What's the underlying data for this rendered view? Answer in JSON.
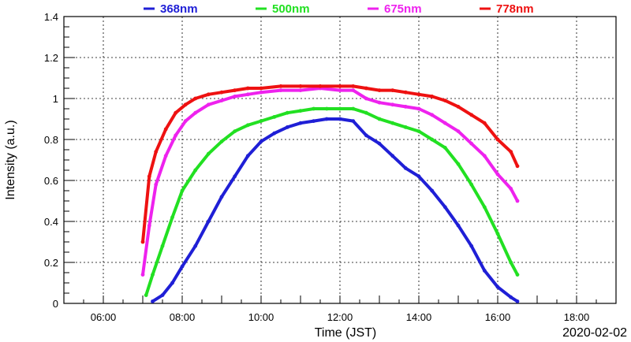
{
  "chart_data": {
    "type": "scatter",
    "title": "",
    "xlabel": "Time (JST)",
    "ylabel": "Intensity (a.u.)",
    "date_label": "2020-02-02",
    "xlim": [
      "05:00",
      "19:00"
    ],
    "ylim": [
      0,
      1.4
    ],
    "x_ticks": [
      "06:00",
      "08:00",
      "10:00",
      "12:00",
      "14:00",
      "16:00",
      "18:00"
    ],
    "y_ticks": [
      "0",
      "0.2",
      "0.4",
      "0.6",
      "0.8",
      "1",
      "1.2",
      "1.4"
    ],
    "grid": true,
    "legend_position": "top",
    "series": [
      {
        "name": "368nm",
        "color": "#1f1fd6",
        "points": [
          [
            "07:15",
            0.01
          ],
          [
            "07:30",
            0.04
          ],
          [
            "07:45",
            0.1
          ],
          [
            "08:00",
            0.18
          ],
          [
            "08:20",
            0.28
          ],
          [
            "08:40",
            0.4
          ],
          [
            "09:00",
            0.52
          ],
          [
            "09:20",
            0.62
          ],
          [
            "09:40",
            0.72
          ],
          [
            "10:00",
            0.79
          ],
          [
            "10:20",
            0.83
          ],
          [
            "10:40",
            0.86
          ],
          [
            "11:00",
            0.88
          ],
          [
            "11:20",
            0.89
          ],
          [
            "11:40",
            0.9
          ],
          [
            "12:00",
            0.9
          ],
          [
            "12:20",
            0.89
          ],
          [
            "12:40",
            0.82
          ],
          [
            "13:00",
            0.78
          ],
          [
            "13:20",
            0.72
          ],
          [
            "13:40",
            0.66
          ],
          [
            "14:00",
            0.62
          ],
          [
            "14:20",
            0.55
          ],
          [
            "14:40",
            0.47
          ],
          [
            "15:00",
            0.38
          ],
          [
            "15:20",
            0.28
          ],
          [
            "15:40",
            0.16
          ],
          [
            "16:00",
            0.08
          ],
          [
            "16:20",
            0.03
          ],
          [
            "16:30",
            0.01
          ]
        ]
      },
      {
        "name": "500nm",
        "color": "#22e022",
        "points": [
          [
            "07:05",
            0.04
          ],
          [
            "07:15",
            0.14
          ],
          [
            "07:30",
            0.28
          ],
          [
            "07:45",
            0.42
          ],
          [
            "08:00",
            0.55
          ],
          [
            "08:20",
            0.65
          ],
          [
            "08:40",
            0.73
          ],
          [
            "09:00",
            0.79
          ],
          [
            "09:20",
            0.84
          ],
          [
            "09:40",
            0.87
          ],
          [
            "10:00",
            0.89
          ],
          [
            "10:20",
            0.91
          ],
          [
            "10:40",
            0.93
          ],
          [
            "11:00",
            0.94
          ],
          [
            "11:20",
            0.95
          ],
          [
            "11:40",
            0.95
          ],
          [
            "12:00",
            0.95
          ],
          [
            "12:20",
            0.95
          ],
          [
            "12:40",
            0.93
          ],
          [
            "13:00",
            0.9
          ],
          [
            "13:20",
            0.88
          ],
          [
            "13:40",
            0.86
          ],
          [
            "14:00",
            0.84
          ],
          [
            "14:20",
            0.8
          ],
          [
            "14:40",
            0.76
          ],
          [
            "15:00",
            0.68
          ],
          [
            "15:20",
            0.58
          ],
          [
            "15:40",
            0.47
          ],
          [
            "16:00",
            0.34
          ],
          [
            "16:20",
            0.2
          ],
          [
            "16:30",
            0.14
          ]
        ]
      },
      {
        "name": "675nm",
        "color": "#ee22ee",
        "points": [
          [
            "07:00",
            0.14
          ],
          [
            "07:10",
            0.38
          ],
          [
            "07:20",
            0.58
          ],
          [
            "07:35",
            0.72
          ],
          [
            "07:50",
            0.82
          ],
          [
            "08:05",
            0.89
          ],
          [
            "08:20",
            0.93
          ],
          [
            "08:40",
            0.97
          ],
          [
            "09:00",
            0.99
          ],
          [
            "09:20",
            1.01
          ],
          [
            "09:40",
            1.02
          ],
          [
            "10:00",
            1.03
          ],
          [
            "10:30",
            1.04
          ],
          [
            "11:00",
            1.04
          ],
          [
            "11:30",
            1.05
          ],
          [
            "12:00",
            1.04
          ],
          [
            "12:20",
            1.04
          ],
          [
            "12:40",
            1.0
          ],
          [
            "13:00",
            0.98
          ],
          [
            "13:20",
            0.97
          ],
          [
            "13:40",
            0.96
          ],
          [
            "14:00",
            0.95
          ],
          [
            "14:20",
            0.92
          ],
          [
            "14:40",
            0.88
          ],
          [
            "15:00",
            0.84
          ],
          [
            "15:20",
            0.78
          ],
          [
            "15:40",
            0.72
          ],
          [
            "16:00",
            0.63
          ],
          [
            "16:20",
            0.56
          ],
          [
            "16:30",
            0.5
          ]
        ]
      },
      {
        "name": "778nm",
        "color": "#ee1111",
        "points": [
          [
            "07:00",
            0.3
          ],
          [
            "07:10",
            0.62
          ],
          [
            "07:20",
            0.74
          ],
          [
            "07:35",
            0.85
          ],
          [
            "07:50",
            0.93
          ],
          [
            "08:05",
            0.97
          ],
          [
            "08:20",
            1.0
          ],
          [
            "08:40",
            1.02
          ],
          [
            "09:00",
            1.03
          ],
          [
            "09:20",
            1.04
          ],
          [
            "09:40",
            1.05
          ],
          [
            "10:00",
            1.05
          ],
          [
            "10:30",
            1.06
          ],
          [
            "11:00",
            1.06
          ],
          [
            "11:30",
            1.06
          ],
          [
            "12:00",
            1.06
          ],
          [
            "12:20",
            1.06
          ],
          [
            "12:40",
            1.05
          ],
          [
            "13:00",
            1.04
          ],
          [
            "13:20",
            1.04
          ],
          [
            "13:40",
            1.03
          ],
          [
            "14:00",
            1.02
          ],
          [
            "14:20",
            1.01
          ],
          [
            "14:40",
            0.99
          ],
          [
            "15:00",
            0.96
          ],
          [
            "15:20",
            0.92
          ],
          [
            "15:40",
            0.88
          ],
          [
            "16:00",
            0.8
          ],
          [
            "16:20",
            0.74
          ],
          [
            "16:30",
            0.67
          ]
        ]
      }
    ]
  }
}
